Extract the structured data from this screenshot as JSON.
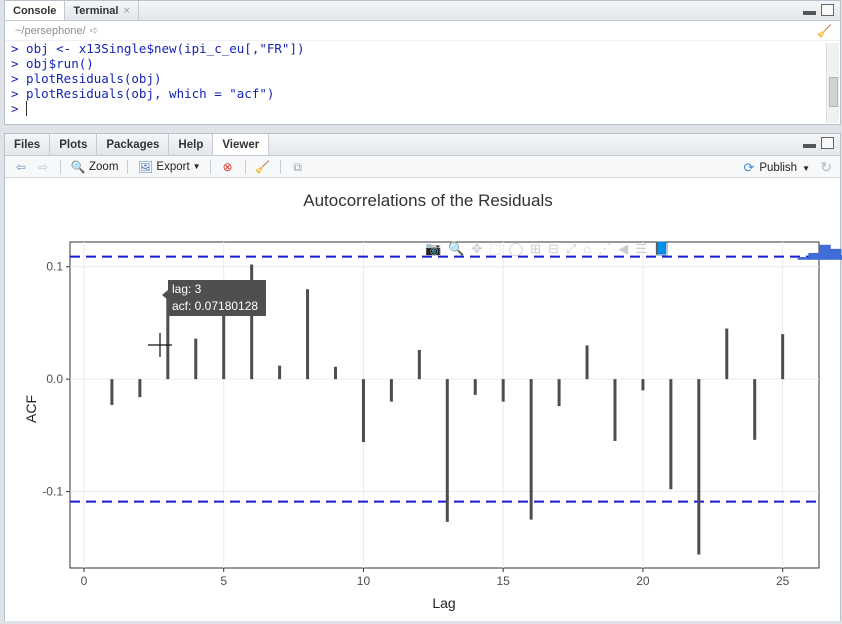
{
  "console_pane": {
    "tabs": [
      {
        "label": "Console",
        "active": true
      },
      {
        "label": "Terminal",
        "active": false
      }
    ],
    "path": "~/persephone/",
    "lines": [
      "> obj <- x13Single$new(ipi_c_eu[,\"FR\"])",
      "> obj$run()",
      "> plotResiduals(obj)",
      "> plotResiduals(obj, which = \"acf\")",
      "> "
    ]
  },
  "viewer_pane": {
    "tabs": [
      {
        "label": "Files",
        "active": false
      },
      {
        "label": "Plots",
        "active": false
      },
      {
        "label": "Packages",
        "active": false
      },
      {
        "label": "Help",
        "active": false
      },
      {
        "label": "Viewer",
        "active": true
      }
    ],
    "toolbar": {
      "zoom_label": "Zoom",
      "export_label": "Export",
      "publish_label": "Publish"
    }
  },
  "chart_data": {
    "type": "bar",
    "title": "Autocorrelations of the Residuals",
    "xlabel": "Lag",
    "ylabel": "ACF",
    "xlim": [
      -0.5,
      26.3
    ],
    "ylim": [
      -0.168,
      0.122
    ],
    "x_ticks": [
      0,
      5,
      10,
      15,
      20,
      25
    ],
    "y_ticks": [
      -0.1,
      0.0,
      0.1
    ],
    "y_tick_labels": [
      "-0.1",
      "0.0",
      "0.1"
    ],
    "x": [
      1,
      2,
      3,
      4,
      5,
      6,
      7,
      8,
      9,
      10,
      11,
      12,
      13,
      14,
      15,
      16,
      17,
      18,
      19,
      20,
      21,
      22,
      23,
      24,
      25
    ],
    "values": [
      -0.023,
      -0.016,
      0.0718,
      0.036,
      0.085,
      0.102,
      0.012,
      0.08,
      0.011,
      -0.056,
      -0.02,
      0.026,
      -0.127,
      -0.014,
      -0.02,
      -0.125,
      -0.024,
      0.03,
      -0.055,
      -0.01,
      -0.098,
      -0.156,
      0.045,
      -0.054,
      0.04
    ],
    "confidence_band": [
      -0.109,
      0.109
    ],
    "bar_color": "#4d4d4d",
    "band_color": "#1a1ad6",
    "grid": true,
    "tooltip": {
      "line1": "lag: 3",
      "line2": "acf: 0.07180128"
    }
  }
}
